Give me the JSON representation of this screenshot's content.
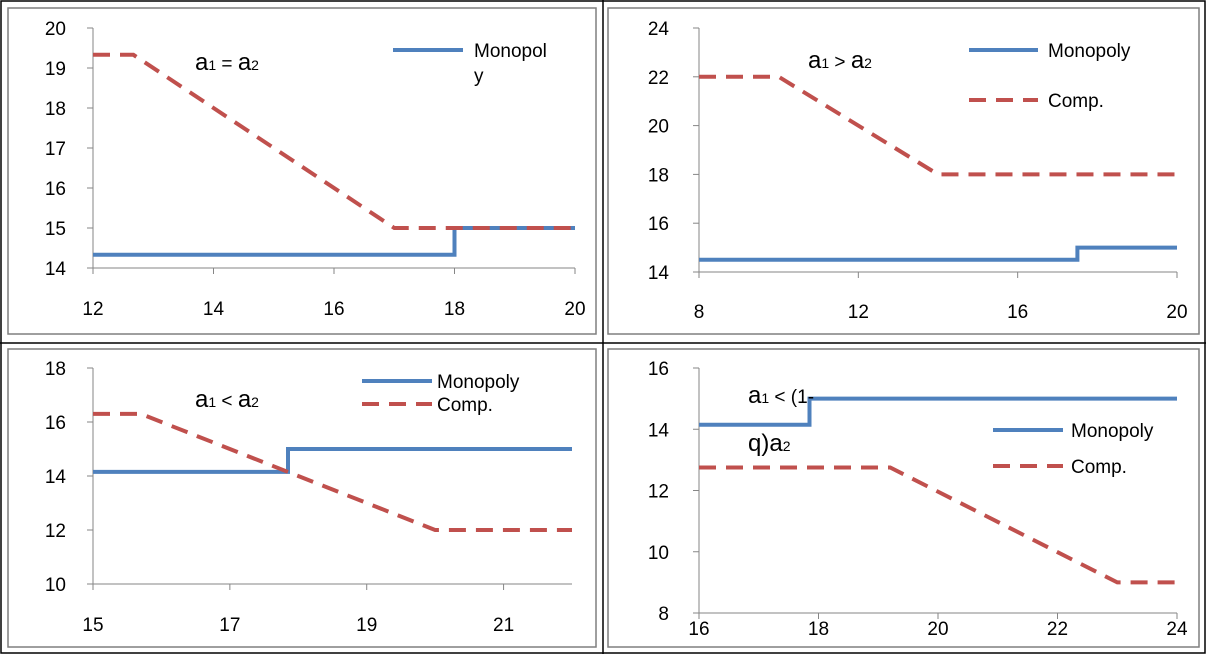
{
  "colors": {
    "monopoly": "#4F81BD",
    "comp": "#C0504D",
    "axis": "#868686",
    "border": "#000000",
    "frame": "#7f7f7f"
  },
  "chart_data": [
    {
      "type": "line",
      "annotation": {
        "a": "a",
        "s1": "1",
        "rel": "=",
        "s2": "2"
      },
      "xlim": [
        12,
        20
      ],
      "ylim": [
        14,
        20
      ],
      "xticks": [
        "12",
        "14",
        "16",
        "18",
        "20"
      ],
      "yticks": [
        "14",
        "15",
        "16",
        "17",
        "18",
        "19",
        "20"
      ],
      "legend": {
        "placement": "top-right",
        "lines": [
          "Monopol",
          "y"
        ]
      },
      "series": [
        {
          "name": "Monopoly",
          "style": "solid",
          "x": [
            12,
            18,
            18,
            20
          ],
          "y": [
            14.33,
            14.33,
            15,
            15
          ]
        },
        {
          "style": "dashed",
          "x": [
            12,
            12.67,
            17,
            20
          ],
          "y": [
            19.33,
            19.33,
            15,
            15
          ]
        }
      ]
    },
    {
      "type": "line",
      "annotation": {
        "a": "a",
        "s1": "1",
        "rel": ">",
        "s2": "2"
      },
      "xlim": [
        8,
        20
      ],
      "ylim": [
        14,
        24
      ],
      "xticks": [
        "8",
        "12",
        "16",
        "20"
      ],
      "yticks": [
        "14",
        "16",
        "18",
        "20",
        "22",
        "24"
      ],
      "legend": {
        "placement": "top-right"
      },
      "series": [
        {
          "name": "Monopoly",
          "style": "solid",
          "x": [
            8,
            17.5,
            17.5,
            20
          ],
          "y": [
            14.5,
            14.5,
            15,
            15
          ]
        },
        {
          "name": "Comp.",
          "style": "dashed",
          "x": [
            8,
            10,
            14,
            20
          ],
          "y": [
            22,
            22,
            18,
            18
          ]
        }
      ]
    },
    {
      "type": "line",
      "annotation": {
        "a": "a",
        "s1": "1",
        "rel": "<",
        "s2": "2"
      },
      "xlim": [
        15,
        22
      ],
      "ylim": [
        10,
        18
      ],
      "xticks": [
        "15",
        "17",
        "19",
        "21"
      ],
      "yticks": [
        "10",
        "12",
        "14",
        "16",
        "18"
      ],
      "legend": {
        "placement": "top-right"
      },
      "series": [
        {
          "name": "Monopoly",
          "style": "solid",
          "x": [
            15,
            17.85,
            17.85,
            22
          ],
          "y": [
            14.15,
            14.15,
            15,
            15
          ]
        },
        {
          "name": "Comp.",
          "style": "dashed",
          "x": [
            15,
            15.7,
            20,
            22
          ],
          "y": [
            16.3,
            16.3,
            12,
            12
          ]
        }
      ]
    },
    {
      "type": "line",
      "annotation": {
        "a": "a",
        "s1": "1",
        "rel": "< (1-",
        "line2": "q)a",
        "s2": "2"
      },
      "xlim": [
        16,
        24
      ],
      "ylim": [
        8,
        16
      ],
      "xticks": [
        "16",
        "18",
        "20",
        "22",
        "24"
      ],
      "yticks": [
        "8",
        "10",
        "12",
        "14",
        "16"
      ],
      "legend": {
        "placement": "right"
      },
      "series": [
        {
          "name": "Monopoly",
          "style": "solid",
          "x": [
            16,
            17.85,
            17.85,
            24
          ],
          "y": [
            14.15,
            14.15,
            15,
            15
          ]
        },
        {
          "name": "Comp.",
          "style": "dashed",
          "x": [
            16,
            19.2,
            23,
            24
          ],
          "y": [
            12.75,
            12.75,
            9,
            9
          ]
        }
      ]
    }
  ]
}
